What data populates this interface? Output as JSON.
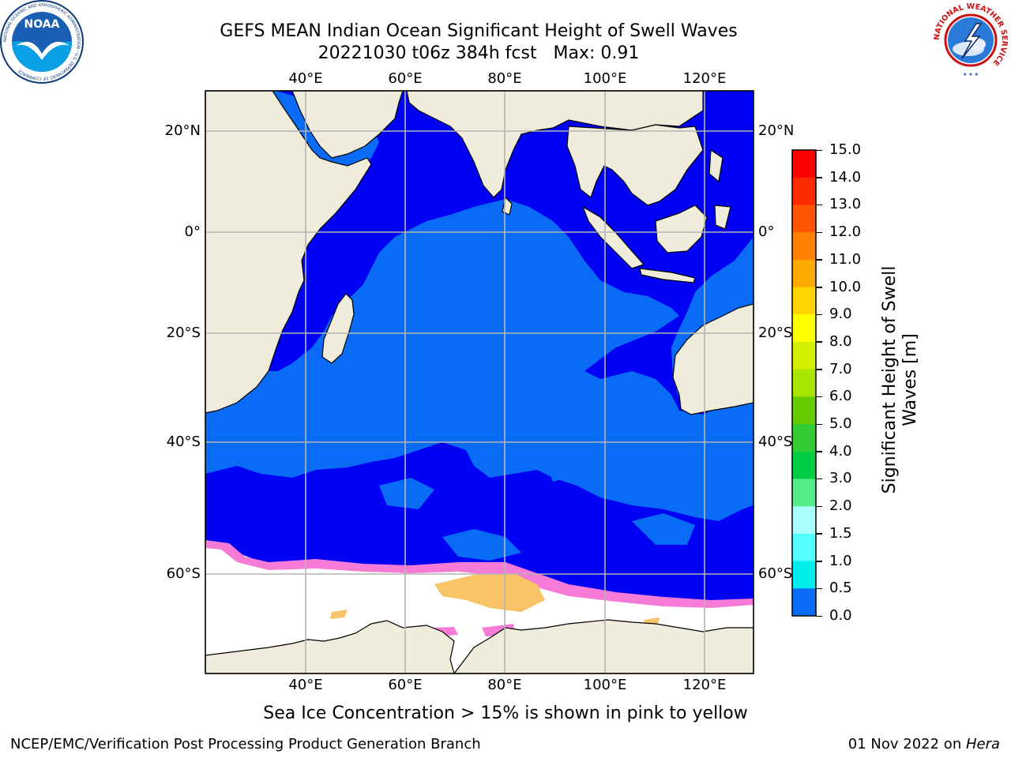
{
  "title": {
    "line1": "GEFS MEAN Indian Ocean Significant Height of Swell Waves",
    "line2": "20221030 t06z 384h fcst   Max: 0.91"
  },
  "map": {
    "lon_labels": [
      "40°E",
      "60°E",
      "80°E",
      "100°E",
      "120°E"
    ],
    "lat_labels": [
      "20°N",
      "0°",
      "20°S",
      "40°S",
      "60°S"
    ],
    "colors": {
      "land": "#efecdc",
      "ocean_low": "#0000f5",
      "ocean_mid": "#0a6cf6",
      "ice_pink": "#f67bd6",
      "ice_yellow": "#f8c466",
      "grid": "#b4b4b4"
    }
  },
  "colorbar": {
    "title": "Significant Height of Swell\nWaves [m]",
    "ticks": [
      "15.0",
      "14.0",
      "13.0",
      "12.0",
      "11.0",
      "10.0",
      "9.0",
      "8.0",
      "7.0",
      "6.0",
      "5.0",
      "4.0",
      "3.0",
      "2.0",
      "1.5",
      "1.0",
      "0.5",
      "0.0"
    ],
    "colors": [
      "#ff0000",
      "#ff2a00",
      "#ff5500",
      "#ff7f00",
      "#ffaa00",
      "#ffd400",
      "#ffff00",
      "#d4f000",
      "#a8e600",
      "#66cc00",
      "#33cc33",
      "#00cc44",
      "#55ee88",
      "#aaffff",
      "#55ffff",
      "#00eeee",
      "#0a6cf6",
      "#0000f5"
    ]
  },
  "caption": "Sea Ice Concentration > 15% is shown in pink to yellow",
  "footer": {
    "left": "NCEP/EMC/Verification Post Processing Product Generation Branch",
    "right_date": "01 Nov 2022 on ",
    "right_machine": "Hera"
  },
  "logos": {
    "noaa_text": "NOAA",
    "noaa_ring": "NATIONAL OCEANIC AND ATMOSPHERIC ADMINISTRATION · U.S. DEPARTMENT OF COMMERCE",
    "nws_ring": "NATIONAL WEATHER SERVICE"
  }
}
